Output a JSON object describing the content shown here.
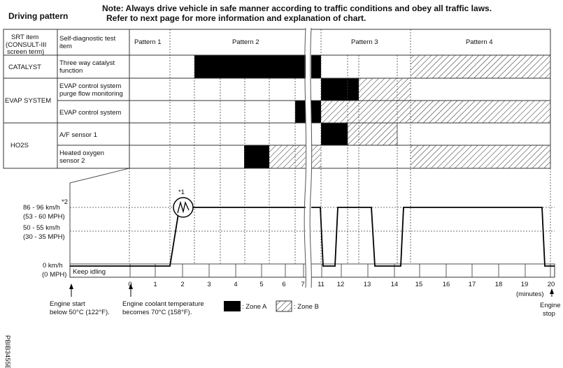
{
  "title": "Driving pattern",
  "note_line1": "Note: Always drive vehicle in safe manner according to traffic conditions and obey all traffic laws.",
  "note_line2": "Refer to next page for more information and explanation of chart.",
  "table": {
    "header": {
      "srt_item": [
        "SRT item",
        "(CONSULT-III",
        "screen term)"
      ],
      "self_diag": [
        "Self-diagnostic test",
        "item"
      ],
      "patterns": [
        "Pattern 1",
        "Pattern 2",
        "Pattern 3",
        "Pattern 4"
      ]
    },
    "rows": [
      {
        "srt": "CATALYST",
        "item": [
          "Three way catalyst",
          "function"
        ]
      },
      {
        "srt": "EVAP SYSTEM",
        "item": [
          "EVAP control system",
          "purge flow monitoring"
        ]
      },
      {
        "srt": "",
        "item": [
          "EVAP control system"
        ]
      },
      {
        "srt": "HO2S",
        "item": [
          "A/F sensor 1"
        ]
      },
      {
        "srt": "",
        "item": [
          "Heated oxygen",
          "sensor 2"
        ]
      }
    ]
  },
  "graph": {
    "speed_high": [
      "86 - 96 km/h",
      "(53 - 60 MPH)"
    ],
    "speed_mid": [
      "50 - 55 km/h",
      "(30 - 35 MPH)"
    ],
    "speed_zero": [
      "0 km/h",
      "(0 MPH)"
    ],
    "note2": "*2",
    "note1": "*1",
    "keep_idling": "Keep idling",
    "time_ticks": [
      "0",
      "1",
      "2",
      "3",
      "4",
      "5",
      "6",
      "7",
      "11",
      "12",
      "13",
      "14",
      "15",
      "16",
      "17",
      "18",
      "19",
      "20"
    ],
    "time_unit": "(minutes)",
    "engine_start": [
      "Engine start",
      "below 50°C (122°F)."
    ],
    "coolant": [
      "Engine coolant temperature",
      "becomes 70°C (158°F)."
    ],
    "engine_stop": [
      "Engine",
      "stop"
    ]
  },
  "legend": {
    "zone_a": ": Zone A",
    "zone_b": ": Zone B",
    "zone_a_color": "#000000"
  },
  "figure_id": "PBIB3455E"
}
